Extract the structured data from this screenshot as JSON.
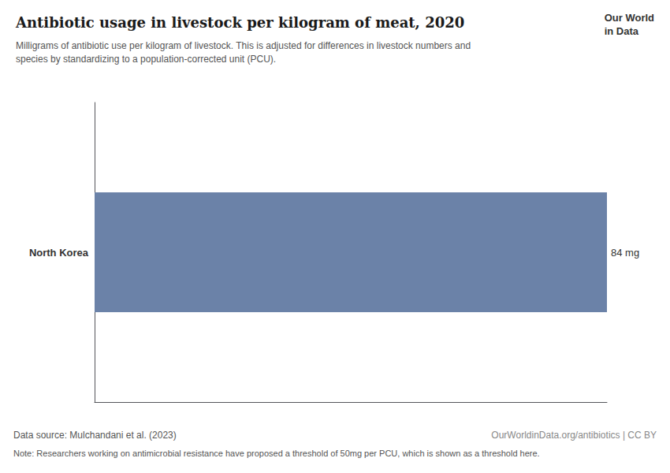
{
  "chart_data": {
    "type": "bar",
    "orientation": "horizontal",
    "title": "Antibiotic usage in livestock per kilogram of meat, 2020",
    "subtitle": "Milligrams of antibiotic use per kilogram of livestock. This is adjusted for differences in livestock numbers and\nspecies by standardizing to a population-corrected unit (PCU).",
    "categories": [
      "North Korea"
    ],
    "values": [
      84
    ],
    "value_labels": [
      "84 mg"
    ],
    "data_labels": true,
    "color": "#6b82a8",
    "xlim": [
      0,
      84
    ],
    "xticks": [],
    "tick_labels": "y",
    "grid": false,
    "annotations": [
      "Data source: Mulchandani et al. (2023)",
      "Note: Researchers working on antimicrobial resistance have proposed a threshold of 50mg per PCU, which is shown as a threshold here.",
      "OurWorldinData.org/antibiotics | CC BY",
      "Our World\nin Data"
    ]
  }
}
